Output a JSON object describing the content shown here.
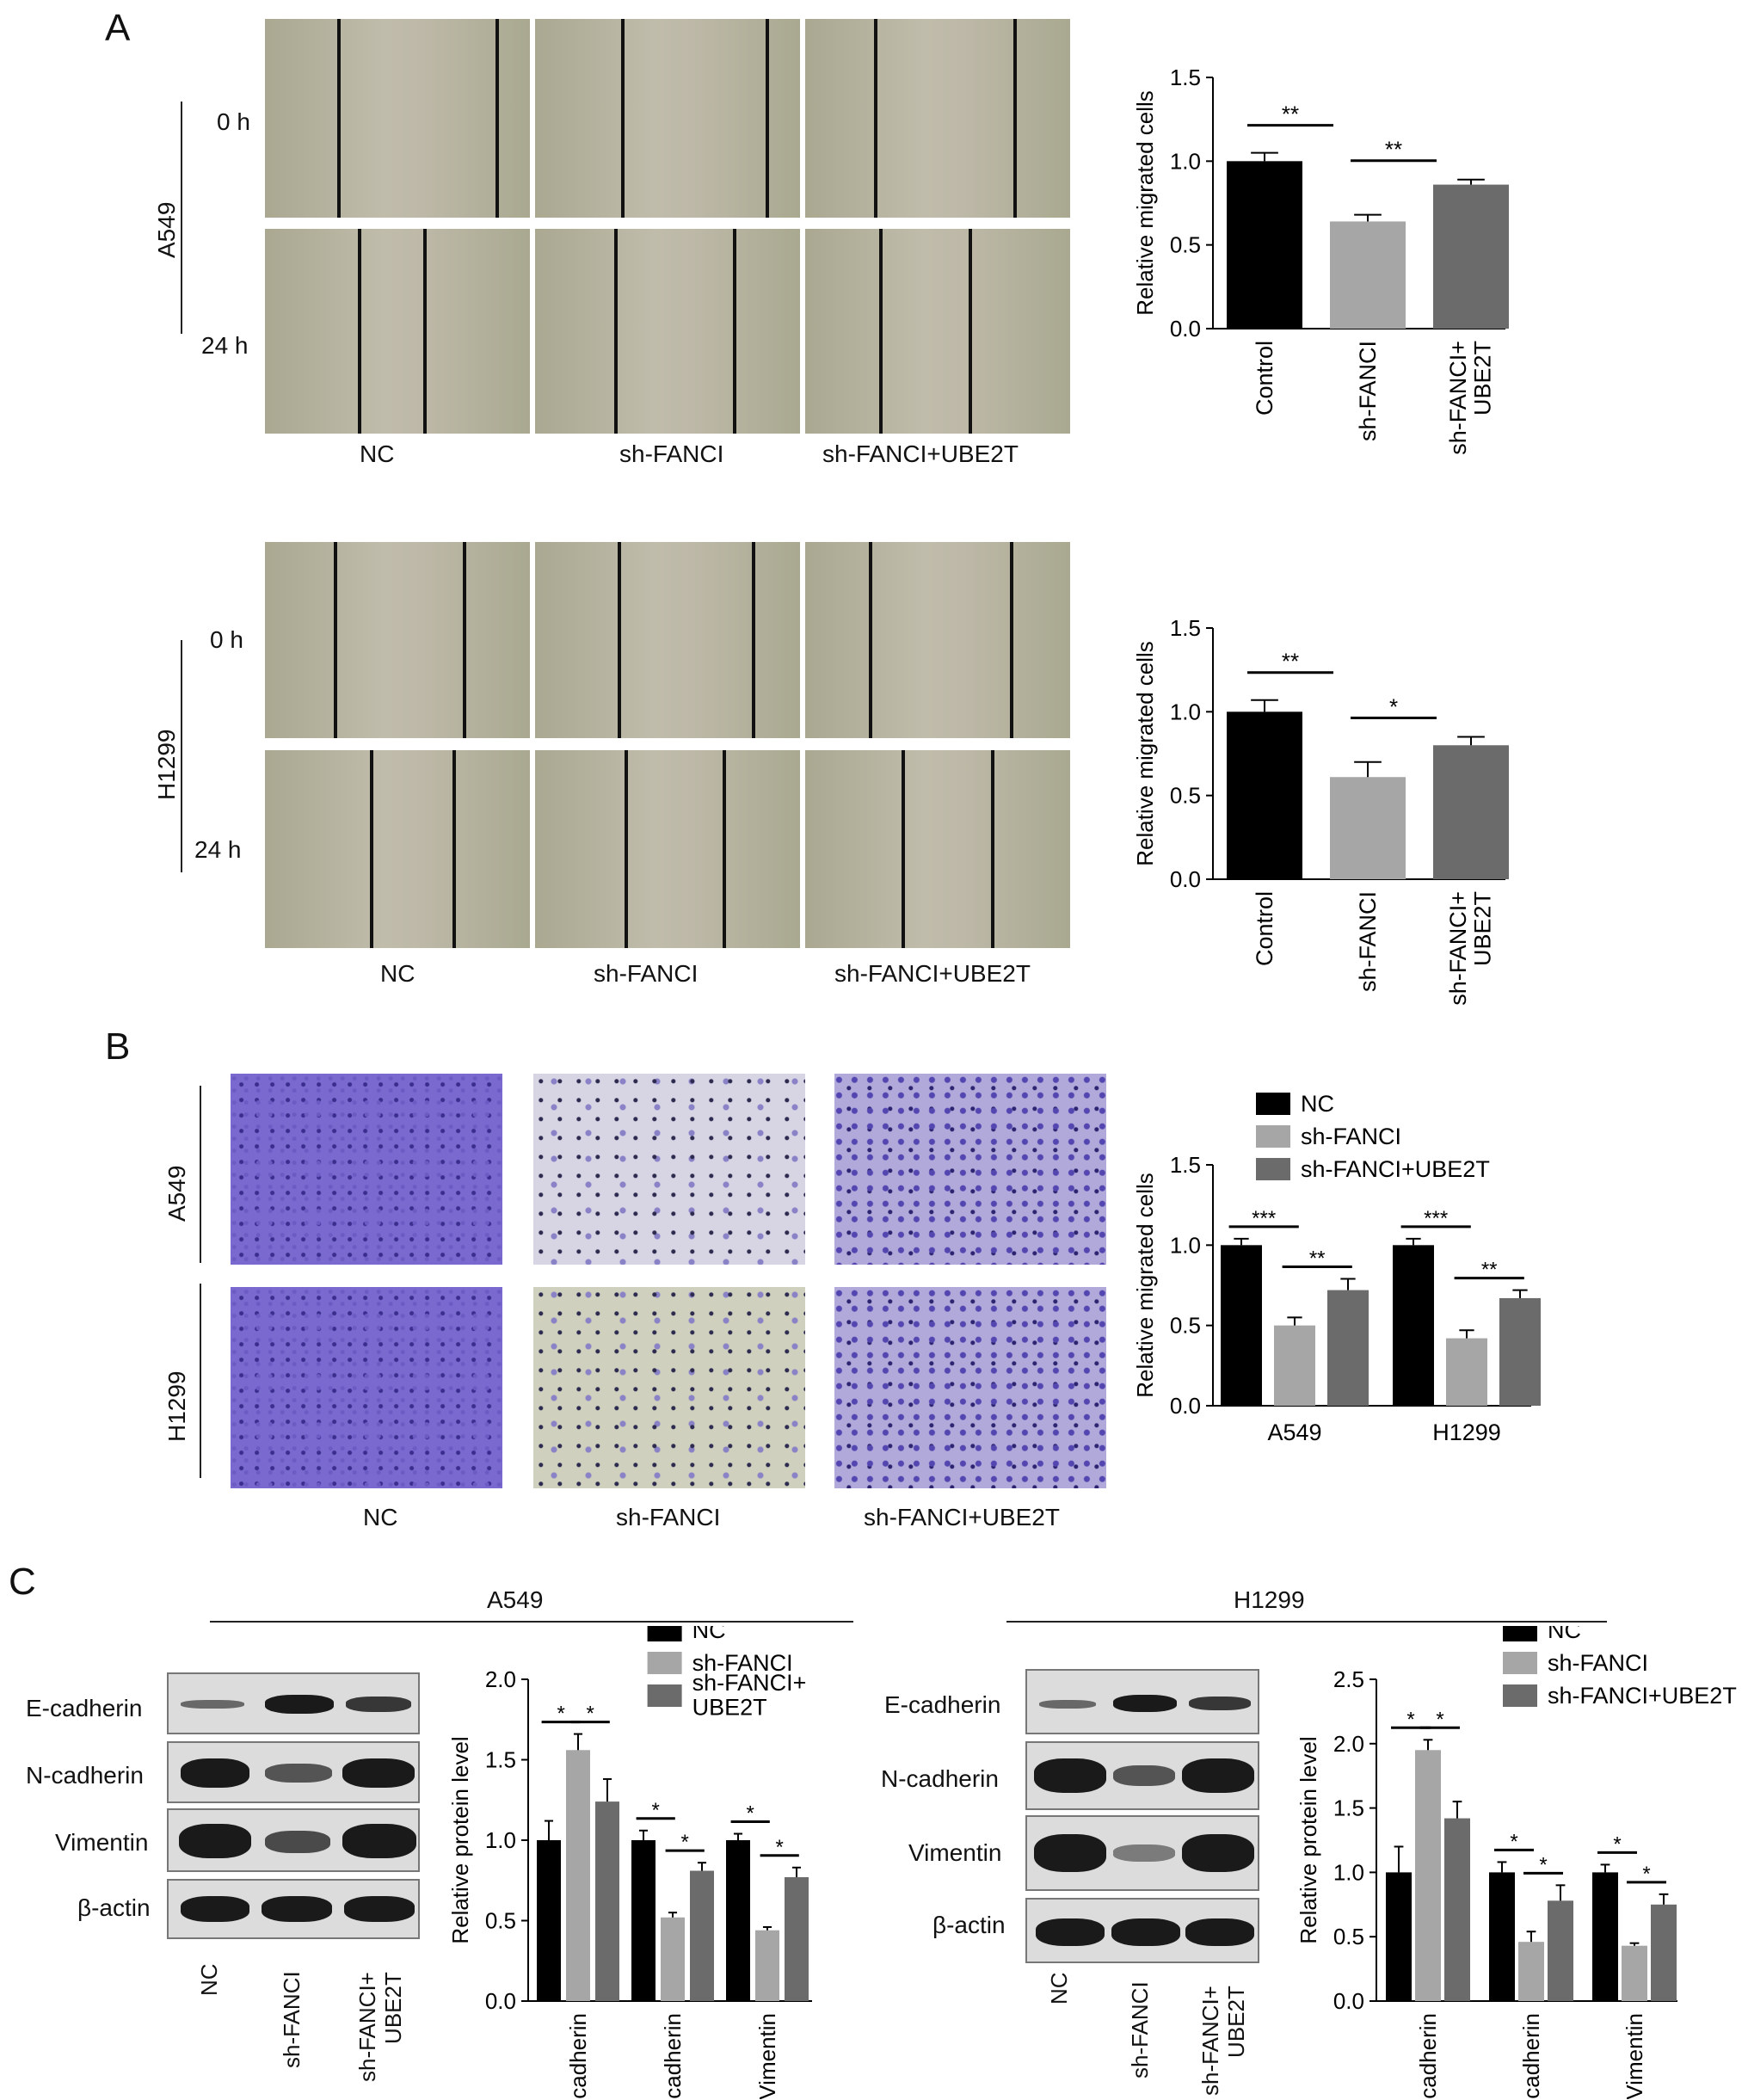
{
  "panels": {
    "A": "A",
    "B": "B",
    "C": "C"
  },
  "panelA": {
    "a549": {
      "cell_line": "A549",
      "time_0": "0 h",
      "time_24": "24 h",
      "conditions": [
        "NC",
        "sh-FANCI",
        "sh-FANCI+UBE2T"
      ]
    },
    "h1299": {
      "cell_line": "H1299",
      "time_0": "0 h",
      "time_24": "24 h",
      "conditions": [
        "NC",
        "sh-FANCI",
        "sh-FANCI+UBE2T"
      ]
    }
  },
  "panelB": {
    "rows": [
      "A549",
      "H1299"
    ],
    "conditions": [
      "NC",
      "sh-FANCI",
      "sh-FANCI+UBE2T"
    ]
  },
  "panelC": {
    "a549": {
      "title": "A549",
      "proteins": [
        "E-cadherin",
        "N-cadherin",
        "Vimentin",
        "β-actin"
      ],
      "lanes": [
        "NC",
        "sh-FANCI",
        "sh-FANCI+\nUBE2T"
      ]
    },
    "h1299": {
      "title": "H1299",
      "proteins": [
        "E-cadherin",
        "N-cadherin",
        "Vimentin",
        "β-actin"
      ],
      "lanes": [
        "NC",
        "sh-FANCI",
        "sh-FANCI+\nUBE2T"
      ]
    }
  },
  "colors": {
    "black": "#000000",
    "light_gray": "#a6a6a6",
    "dark_gray": "#6b6b6b"
  },
  "chart_data": [
    {
      "id": "a549-wound",
      "type": "bar",
      "categories": [
        "Control",
        "sh-FANCI",
        "sh-FANCI+\nUBE2T"
      ],
      "values": [
        1.0,
        0.64,
        0.86
      ],
      "errors": [
        0.05,
        0.04,
        0.03
      ],
      "bar_colors": [
        "#000000",
        "#a6a6a6",
        "#6b6b6b"
      ],
      "ylabel": "Relative migrated cells",
      "ylim": [
        0,
        1.5
      ],
      "yticks": [
        "0.0",
        "0.5",
        "1.0",
        "1.5"
      ],
      "significance": [
        {
          "from": 0,
          "to": 1,
          "label": "**"
        },
        {
          "from": 1,
          "to": 2,
          "label": "**"
        }
      ]
    },
    {
      "id": "h1299-wound",
      "type": "bar",
      "categories": [
        "Control",
        "sh-FANCI",
        "sh-FANCI+\nUBE2T"
      ],
      "values": [
        1.0,
        0.61,
        0.8
      ],
      "errors": [
        0.07,
        0.09,
        0.05
      ],
      "bar_colors": [
        "#000000",
        "#a6a6a6",
        "#6b6b6b"
      ],
      "ylabel": "Relative migrated cells",
      "ylim": [
        0,
        1.5
      ],
      "yticks": [
        "0.0",
        "0.5",
        "1.0",
        "1.5"
      ],
      "significance": [
        {
          "from": 0,
          "to": 1,
          "label": "**"
        },
        {
          "from": 1,
          "to": 2,
          "label": "*"
        }
      ]
    },
    {
      "id": "transwell",
      "type": "bar",
      "categories": [
        "A549",
        "H1299"
      ],
      "series": [
        {
          "name": "NC",
          "values": [
            1.0,
            1.0
          ],
          "errors": [
            0.04,
            0.04
          ],
          "color": "#000000"
        },
        {
          "name": "sh-FANCI",
          "values": [
            0.5,
            0.42
          ],
          "errors": [
            0.05,
            0.05
          ],
          "color": "#a6a6a6"
        },
        {
          "name": "sh-FANCI+UBE2T",
          "values": [
            0.72,
            0.67
          ],
          "errors": [
            0.07,
            0.05
          ],
          "color": "#6b6b6b"
        }
      ],
      "ylabel": "Relative migrated cells",
      "ylim": [
        0,
        1.5
      ],
      "yticks": [
        "0.0",
        "0.5",
        "1.0",
        "1.5"
      ],
      "legend": "top-left",
      "significance": [
        {
          "group": 0,
          "from": 0,
          "to": 1,
          "label": "***"
        },
        {
          "group": 0,
          "from": 1,
          "to": 2,
          "label": "**"
        },
        {
          "group": 1,
          "from": 0,
          "to": 1,
          "label": "***"
        },
        {
          "group": 1,
          "from": 1,
          "to": 2,
          "label": "**"
        }
      ]
    },
    {
      "id": "a549-wb",
      "type": "bar",
      "categories": [
        "E-cadherin",
        "N-cadherin",
        "Vimentin"
      ],
      "series": [
        {
          "name": "NC",
          "values": [
            1.0,
            1.0,
            1.0
          ],
          "errors": [
            0.12,
            0.06,
            0.04
          ],
          "color": "#000000"
        },
        {
          "name": "sh-FANCI",
          "values": [
            1.56,
            0.52,
            0.44
          ],
          "errors": [
            0.1,
            0.03,
            0.02
          ],
          "color": "#a6a6a6"
        },
        {
          "name": "sh-FANCI+\nUBE2T",
          "values": [
            1.24,
            0.81,
            0.77
          ],
          "errors": [
            0.14,
            0.05,
            0.06
          ],
          "color": "#6b6b6b"
        }
      ],
      "ylabel": "Relative protein level",
      "ylim": [
        0,
        2.0
      ],
      "yticks": [
        "0.0",
        "0.5",
        "1.0",
        "1.5",
        "2.0"
      ],
      "legend": "top-right",
      "significance": [
        {
          "group": 0,
          "from": 0,
          "to": 1,
          "label": "*"
        },
        {
          "group": 0,
          "from": 1,
          "to": 2,
          "label": "*"
        },
        {
          "group": 1,
          "from": 0,
          "to": 1,
          "label": "*"
        },
        {
          "group": 1,
          "from": 1,
          "to": 2,
          "label": "*"
        },
        {
          "group": 2,
          "from": 0,
          "to": 1,
          "label": "*"
        },
        {
          "group": 2,
          "from": 1,
          "to": 2,
          "label": "*"
        }
      ]
    },
    {
      "id": "h1299-wb",
      "type": "bar",
      "categories": [
        "E-cadherin",
        "N-cadherin",
        "Vimentin"
      ],
      "series": [
        {
          "name": "NC",
          "values": [
            1.0,
            1.0,
            1.0
          ],
          "errors": [
            0.2,
            0.08,
            0.06
          ],
          "color": "#000000"
        },
        {
          "name": "sh-FANCI",
          "values": [
            1.95,
            0.46,
            0.43
          ],
          "errors": [
            0.08,
            0.08,
            0.02
          ],
          "color": "#a6a6a6"
        },
        {
          "name": "sh-FANCI+UBE2T",
          "values": [
            1.42,
            0.78,
            0.75
          ],
          "errors": [
            0.13,
            0.12,
            0.08
          ],
          "color": "#6b6b6b"
        }
      ],
      "ylabel": "Relative protein level",
      "ylim": [
        0,
        2.5
      ],
      "yticks": [
        "0.0",
        "0.5",
        "1.0",
        "1.5",
        "2.0",
        "2.5"
      ],
      "legend": "top-right",
      "significance": [
        {
          "group": 0,
          "from": 0,
          "to": 1,
          "label": "*"
        },
        {
          "group": 0,
          "from": 1,
          "to": 2,
          "label": "*"
        },
        {
          "group": 1,
          "from": 0,
          "to": 1,
          "label": "*"
        },
        {
          "group": 1,
          "from": 1,
          "to": 2,
          "label": "*"
        },
        {
          "group": 2,
          "from": 0,
          "to": 1,
          "label": "*"
        },
        {
          "group": 2,
          "from": 1,
          "to": 2,
          "label": "*"
        }
      ]
    }
  ]
}
